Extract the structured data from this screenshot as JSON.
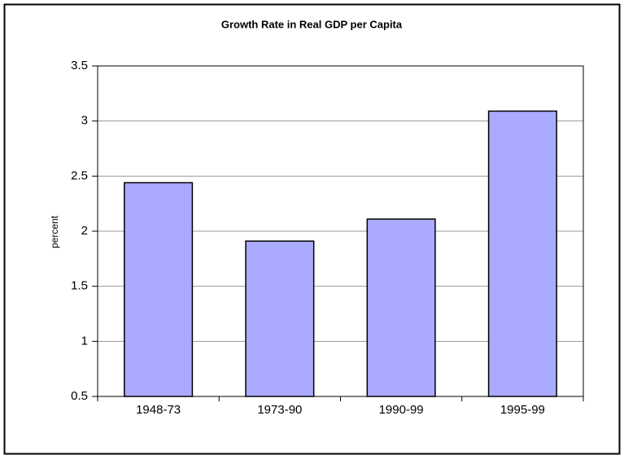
{
  "chart_data": {
    "type": "bar",
    "title": "Growth Rate in Real GDP per Capita",
    "y_label": "percent",
    "categories": [
      "1948-73",
      "1973-90",
      "1990-99",
      "1995-99"
    ],
    "values": [
      2.44,
      1.91,
      2.11,
      3.09
    ],
    "color": "#aaaaff",
    "ylim": [
      0.5,
      3.5
    ],
    "yticks": [
      0.5,
      1,
      1.5,
      2,
      2.5,
      3,
      3.5
    ],
    "grid": true
  }
}
